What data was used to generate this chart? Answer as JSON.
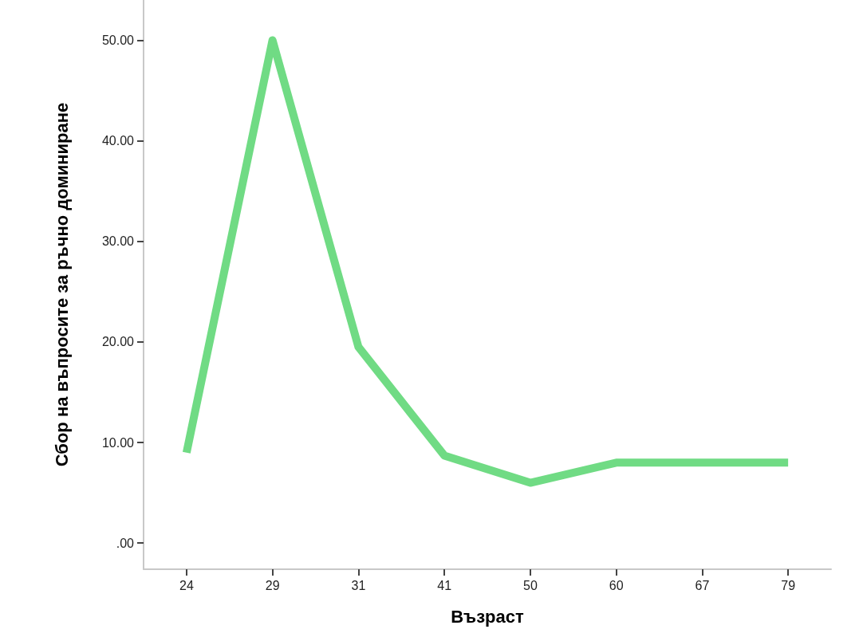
{
  "chart_data": {
    "type": "line",
    "xlabel": "Възраст",
    "ylabel": "Сбор на въпросите за ръчно доминиране",
    "categories": [
      "24",
      "29",
      "31",
      "41",
      "50",
      "60",
      "67",
      "79"
    ],
    "series": [
      {
        "color": "#70db84",
        "values": [
          9,
          50,
          19.5,
          8.7,
          6,
          8,
          8,
          8
        ]
      }
    ],
    "ylim": [
      -2.6,
      54
    ],
    "yticks": [
      {
        "value": 0,
        "label": ".00"
      },
      {
        "value": 10,
        "label": "10.00"
      },
      {
        "value": 20,
        "label": "20.00"
      },
      {
        "value": 30,
        "label": "30.00"
      },
      {
        "value": 40,
        "label": "40.00"
      },
      {
        "value": 50,
        "label": "50.00"
      }
    ],
    "grid": false,
    "marker": "none",
    "line_style": "solid"
  }
}
